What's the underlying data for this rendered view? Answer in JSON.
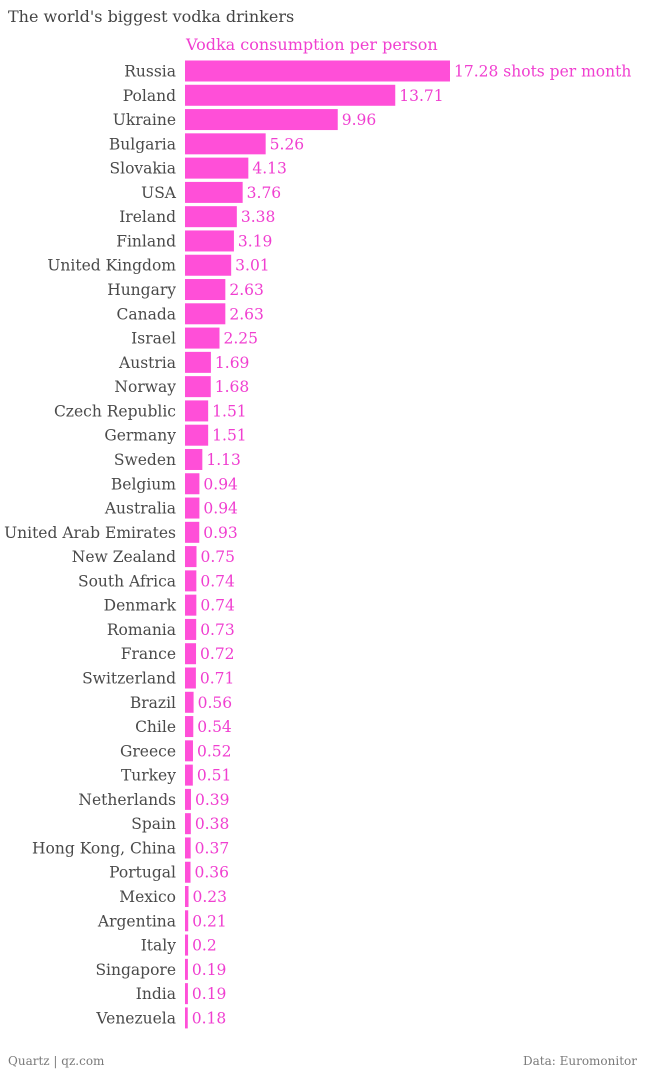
{
  "title": "The world's biggest vodka drinkers",
  "footer": {
    "source_left": "Quartz | qz.com",
    "source_right": "Data: Euromonitor"
  },
  "colors": {
    "bar": "#ff4fd8",
    "value_text": "#f03fd0",
    "label_text": "#4a4a4a"
  },
  "chart_data": {
    "type": "bar",
    "orientation": "horizontal",
    "series_label": "Vodka consumption per person",
    "unit_suffix": "shots per month",
    "categories": [
      "Russia",
      "Poland",
      "Ukraine",
      "Bulgaria",
      "Slovakia",
      "USA",
      "Ireland",
      "Finland",
      "United Kingdom",
      "Hungary",
      "Canada",
      "Israel",
      "Austria",
      "Norway",
      "Czech Republic",
      "Germany",
      "Sweden",
      "Belgium",
      "Australia",
      "United Arab Emirates",
      "New Zealand",
      "South Africa",
      "Denmark",
      "Romania",
      "France",
      "Switzerland",
      "Brazil",
      "Chile",
      "Greece",
      "Turkey",
      "Netherlands",
      "Spain",
      "Hong Kong, China",
      "Portugal",
      "Mexico",
      "Argentina",
      "Italy",
      "Singapore",
      "India",
      "Venezuela"
    ],
    "values": [
      17.28,
      13.71,
      9.96,
      5.26,
      4.13,
      3.76,
      3.38,
      3.19,
      3.01,
      2.63,
      2.63,
      2.25,
      1.69,
      1.68,
      1.51,
      1.51,
      1.13,
      0.94,
      0.94,
      0.93,
      0.75,
      0.74,
      0.74,
      0.73,
      0.72,
      0.71,
      0.56,
      0.54,
      0.52,
      0.51,
      0.39,
      0.38,
      0.37,
      0.36,
      0.23,
      0.21,
      0.2,
      0.19,
      0.19,
      0.18
    ],
    "value_labels": [
      "17.28 shots per month",
      "13.71",
      "9.96",
      "5.26",
      "4.13",
      "3.76",
      "3.38",
      "3.19",
      "3.01",
      "2.63",
      "2.63",
      "2.25",
      "1.69",
      "1.68",
      "1.51",
      "1.51",
      "1.13",
      "0.94",
      "0.94",
      "0.93",
      "0.75",
      "0.74",
      "0.74",
      "0.73",
      "0.72",
      "0.71",
      "0.56",
      "0.54",
      "0.52",
      "0.51",
      "0.39",
      "0.38",
      "0.37",
      "0.36",
      "0.23",
      "0.21",
      "0.2",
      "0.19",
      "0.19",
      "0.18"
    ],
    "xlim": [
      0,
      17.28
    ],
    "grid": false,
    "legend": "none"
  }
}
